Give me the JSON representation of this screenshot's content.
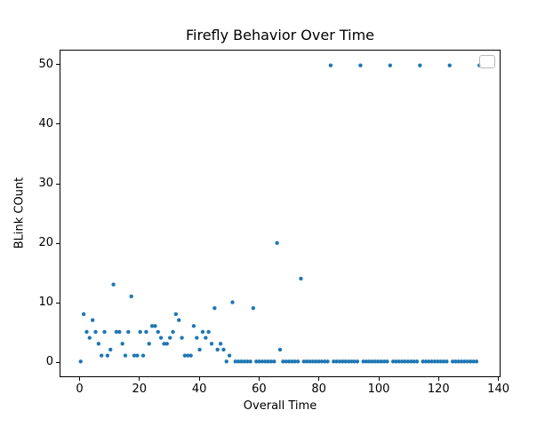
{
  "chart_data": {
    "type": "scatter",
    "title": "Firefly Behavior Over Time",
    "xlabel": "Overall Time",
    "ylabel": "BLink COunt",
    "xlim": [
      -6.7,
      140.7
    ],
    "ylim": [
      -2.5,
      52.5
    ],
    "xticks": [
      0,
      20,
      40,
      60,
      80,
      100,
      120,
      140
    ],
    "yticks": [
      0,
      10,
      20,
      30,
      40,
      50
    ],
    "grid": false,
    "legend": {
      "visible": true,
      "entries": []
    },
    "marker_color": "#1f77b4",
    "points": [
      [
        0,
        0
      ],
      [
        1,
        8
      ],
      [
        2,
        5
      ],
      [
        3,
        4
      ],
      [
        4,
        7
      ],
      [
        5,
        5
      ],
      [
        6,
        3
      ],
      [
        7,
        1
      ],
      [
        8,
        5
      ],
      [
        9,
        1
      ],
      [
        10,
        2
      ],
      [
        11,
        13
      ],
      [
        12,
        5
      ],
      [
        13,
        5
      ],
      [
        14,
        3
      ],
      [
        15,
        1
      ],
      [
        16,
        5
      ],
      [
        17,
        11
      ],
      [
        18,
        1
      ],
      [
        19,
        1
      ],
      [
        20,
        5
      ],
      [
        21,
        1
      ],
      [
        22,
        5
      ],
      [
        23,
        3
      ],
      [
        24,
        6
      ],
      [
        25,
        6
      ],
      [
        26,
        5
      ],
      [
        27,
        4
      ],
      [
        28,
        3
      ],
      [
        29,
        3
      ],
      [
        30,
        4
      ],
      [
        31,
        5
      ],
      [
        32,
        8
      ],
      [
        33,
        7
      ],
      [
        34,
        4
      ],
      [
        35,
        1
      ],
      [
        36,
        1
      ],
      [
        37,
        1
      ],
      [
        38,
        6
      ],
      [
        39,
        4
      ],
      [
        40,
        2
      ],
      [
        41,
        5
      ],
      [
        42,
        4
      ],
      [
        43,
        5
      ],
      [
        44,
        3
      ],
      [
        45,
        9
      ],
      [
        46,
        2
      ],
      [
        47,
        3
      ],
      [
        48,
        2
      ],
      [
        49,
        0
      ],
      [
        50,
        1
      ],
      [
        51,
        10
      ],
      [
        52,
        0
      ],
      [
        53,
        0
      ],
      [
        54,
        0
      ],
      [
        55,
        0
      ],
      [
        56,
        0
      ],
      [
        57,
        0
      ],
      [
        58,
        9
      ],
      [
        59,
        0
      ],
      [
        60,
        0
      ],
      [
        61,
        0
      ],
      [
        62,
        0
      ],
      [
        63,
        0
      ],
      [
        64,
        0
      ],
      [
        65,
        0
      ],
      [
        66,
        20
      ],
      [
        67,
        2
      ],
      [
        68,
        0
      ],
      [
        69,
        0
      ],
      [
        70,
        0
      ],
      [
        71,
        0
      ],
      [
        72,
        0
      ],
      [
        73,
        0
      ],
      [
        74,
        14
      ],
      [
        75,
        0
      ],
      [
        76,
        0
      ],
      [
        77,
        0
      ],
      [
        78,
        0
      ],
      [
        79,
        0
      ],
      [
        80,
        0
      ],
      [
        81,
        0
      ],
      [
        82,
        0
      ],
      [
        83,
        0
      ],
      [
        84,
        50
      ],
      [
        85,
        0
      ],
      [
        86,
        0
      ],
      [
        87,
        0
      ],
      [
        88,
        0
      ],
      [
        89,
        0
      ],
      [
        90,
        0
      ],
      [
        91,
        0
      ],
      [
        92,
        0
      ],
      [
        93,
        0
      ],
      [
        94,
        50
      ],
      [
        95,
        0
      ],
      [
        96,
        0
      ],
      [
        97,
        0
      ],
      [
        98,
        0
      ],
      [
        99,
        0
      ],
      [
        100,
        0
      ],
      [
        101,
        0
      ],
      [
        102,
        0
      ],
      [
        103,
        0
      ],
      [
        104,
        50
      ],
      [
        105,
        0
      ],
      [
        106,
        0
      ],
      [
        107,
        0
      ],
      [
        108,
        0
      ],
      [
        109,
        0
      ],
      [
        110,
        0
      ],
      [
        111,
        0
      ],
      [
        112,
        0
      ],
      [
        113,
        0
      ],
      [
        114,
        50
      ],
      [
        115,
        0
      ],
      [
        116,
        0
      ],
      [
        117,
        0
      ],
      [
        118,
        0
      ],
      [
        119,
        0
      ],
      [
        120,
        0
      ],
      [
        121,
        0
      ],
      [
        122,
        0
      ],
      [
        123,
        0
      ],
      [
        124,
        50
      ],
      [
        125,
        0
      ],
      [
        126,
        0
      ],
      [
        127,
        0
      ],
      [
        128,
        0
      ],
      [
        129,
        0
      ],
      [
        130,
        0
      ],
      [
        131,
        0
      ],
      [
        132,
        0
      ],
      [
        133,
        0
      ],
      [
        134,
        50
      ]
    ]
  }
}
